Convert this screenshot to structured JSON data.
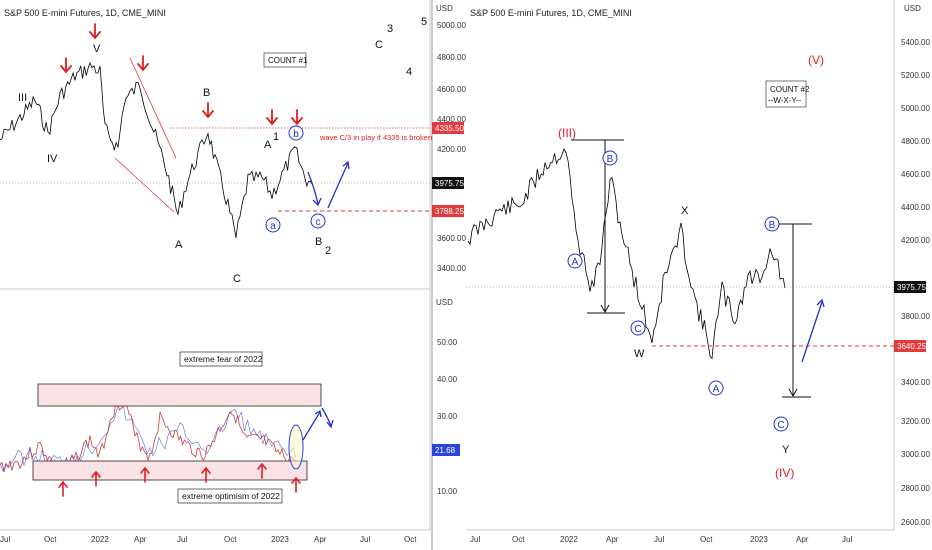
{
  "colors": {
    "price": "#000000",
    "vix": "#d23a3a",
    "vix_alt": "#2a46d8",
    "arrow_red": "#e31b23",
    "wave_blue": "#1f33c7",
    "level": "#e23b3b",
    "box_fill": "#fbe3e5"
  },
  "left_top": {
    "header": "S&P 500 E-mini Futures, 1D, CME_MINI",
    "count_label": "COUNT #1",
    "note": "wave C/3 in play if 4335 is broken",
    "price_current": "3975.75",
    "price_4335": "4335.50",
    "price_3788": "3788.25",
    "yaxis_unit": "USD",
    "yticks": [
      "5000.00",
      "4800.00",
      "4600.00",
      "4400.00",
      "4200.00",
      "3600.00",
      "3400.00"
    ],
    "wave_labels": {
      "III": "III",
      "IV": "IV",
      "V": "V",
      "A1": "A",
      "B1": "B",
      "C1": "C",
      "A2": "A",
      "one": "1",
      "b": "b",
      "c": "c",
      "B2": "B",
      "two": "2",
      "C3": "C",
      "three": "3",
      "four": "4",
      "five": "5",
      "a": "a"
    }
  },
  "left_bottom": {
    "label_fear": "extreme fear of 2022",
    "label_optimism": "extreme optimism of 2022",
    "vix_current": "21.68",
    "yaxis_unit": "USD",
    "yticks": [
      "50.00",
      "40.00",
      "30.00",
      "10.00"
    ]
  },
  "left_xticks": [
    "Jul",
    "Oct",
    "2022",
    "Apr",
    "Jul",
    "Oct",
    "2023",
    "Apr",
    "Jul",
    "Oct"
  ],
  "right": {
    "header": "S&P 500 E-mini Futures, 1D, CME_MINI",
    "count_label_1": "COUNT #2",
    "count_label_2": "--W-X-Y--",
    "price_current": "3975.75",
    "price_3640": "3640.25",
    "yaxis_unit": "USD",
    "yticks": [
      "5400.00",
      "5200.00",
      "5000.00",
      "4800.00",
      "4600.00",
      "4400.00",
      "4200.00",
      "3800.00",
      "3400.00",
      "3200.00",
      "3000.00",
      "2800.00",
      "2600.00"
    ],
    "wave_labels": {
      "III": "(III)",
      "IV": "(IV)",
      "V": "(V)",
      "A1": "A",
      "B1": "B",
      "C1": "C",
      "W": "W",
      "X": "X",
      "A2": "A",
      "B2": "B",
      "C2": "C",
      "Y": "Y"
    },
    "xticks": [
      "Jul",
      "Oct",
      "2022",
      "Apr",
      "Jul",
      "Oct",
      "2023",
      "Apr",
      "Jul"
    ]
  }
}
